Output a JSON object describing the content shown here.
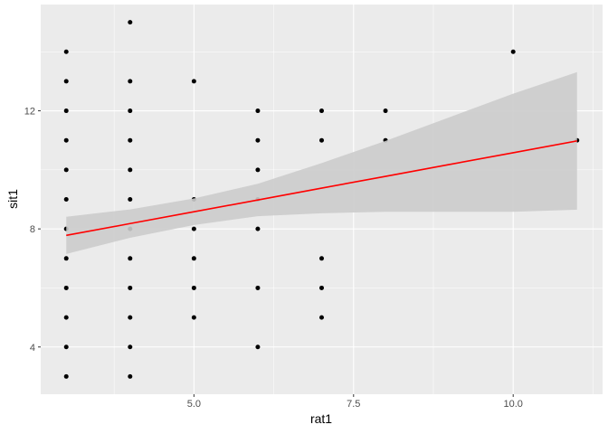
{
  "chart_data": {
    "type": "scatter",
    "x_label": "rat1",
    "y_label": "sit1",
    "x": [
      3,
      3,
      3,
      3,
      3,
      3,
      3,
      3,
      3,
      3,
      3,
      3,
      4,
      4,
      4,
      4,
      4,
      4,
      4,
      4,
      4,
      4,
      4,
      4,
      5,
      5,
      5,
      5,
      5,
      5,
      6,
      6,
      6,
      6,
      6,
      6,
      6,
      7,
      7,
      7,
      7,
      7,
      8,
      8,
      10,
      11
    ],
    "values": [
      14,
      13,
      12,
      11,
      10,
      9,
      8,
      7,
      6,
      5,
      4,
      3,
      15,
      13,
      12,
      11,
      10,
      9,
      8,
      7,
      6,
      5,
      4,
      3,
      13,
      9,
      8,
      7,
      6,
      5,
      12,
      11,
      10,
      9,
      8,
      6,
      4,
      12,
      11,
      7,
      6,
      5,
      12,
      11,
      14,
      11
    ],
    "point_color": "#000000",
    "fit": {
      "color": "#ff0000",
      "band_color": "#cccccc",
      "x": [
        3,
        4,
        5,
        6,
        7,
        8,
        9,
        10,
        11
      ],
      "values": [
        7.78,
        8.18,
        8.58,
        8.98,
        9.38,
        9.78,
        10.18,
        10.58,
        10.98
      ],
      "lower": [
        7.15,
        7.7,
        8.13,
        8.43,
        8.53,
        8.58,
        8.58,
        8.58,
        8.65
      ],
      "upper": [
        8.41,
        8.66,
        9.03,
        9.53,
        10.23,
        10.98,
        11.78,
        12.58,
        13.31
      ]
    },
    "xlim": [
      2.6,
      11.4
    ],
    "ylim": [
      2.4,
      15.6
    ],
    "xticks": [
      {
        "value": 5,
        "label": "5.0"
      },
      7.5,
      {
        "value": 10,
        "label": "10.0"
      }
    ],
    "yticks": [
      4,
      8,
      12
    ],
    "x_minor_ticks": [
      3.75,
      6.25,
      8.75,
      11.25
    ],
    "y_minor_ticks": [
      6,
      10,
      14
    ],
    "grid": true
  }
}
